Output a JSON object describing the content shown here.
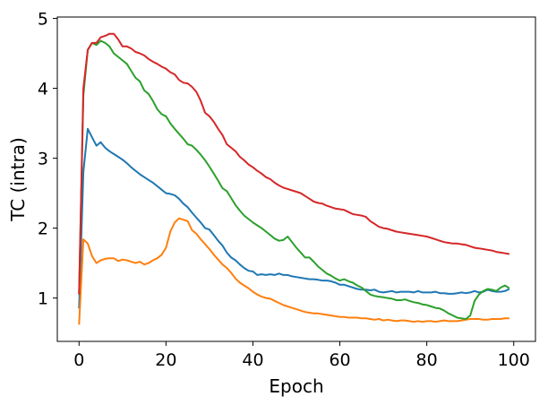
{
  "chart_data": {
    "type": "line",
    "title": "",
    "xlabel": "Epoch",
    "ylabel": "TC (intra)",
    "xlim": [
      -5,
      105
    ],
    "ylim": [
      0.38,
      5.02
    ],
    "xticks": [
      0,
      20,
      40,
      60,
      80,
      100
    ],
    "yticks": [
      1,
      2,
      3,
      4,
      5
    ],
    "grid": false,
    "legend": "none",
    "x": [
      0,
      1,
      2,
      3,
      4,
      5,
      6,
      7,
      8,
      9,
      10,
      11,
      12,
      13,
      14,
      15,
      16,
      17,
      18,
      19,
      20,
      21,
      22,
      23,
      24,
      25,
      26,
      27,
      28,
      29,
      30,
      31,
      32,
      33,
      34,
      35,
      36,
      37,
      38,
      39,
      40,
      41,
      42,
      43,
      44,
      45,
      46,
      47,
      48,
      49,
      50,
      51,
      52,
      53,
      54,
      55,
      56,
      57,
      58,
      59,
      60,
      61,
      62,
      63,
      64,
      65,
      66,
      67,
      68,
      69,
      70,
      71,
      72,
      73,
      74,
      75,
      76,
      77,
      78,
      79,
      80,
      81,
      82,
      83,
      84,
      85,
      86,
      87,
      88,
      89,
      90,
      91,
      92,
      93,
      94,
      95,
      96,
      97,
      98,
      99
    ],
    "series": [
      {
        "color": "#1f77b4",
        "values": [
          0.85,
          2.8,
          3.42,
          3.3,
          3.18,
          3.23,
          3.15,
          3.1,
          3.06,
          3.02,
          2.98,
          2.93,
          2.87,
          2.82,
          2.77,
          2.73,
          2.69,
          2.65,
          2.6,
          2.55,
          2.5,
          2.49,
          2.47,
          2.42,
          2.35,
          2.3,
          2.22,
          2.15,
          2.08,
          2.0,
          1.98,
          1.9,
          1.82,
          1.75,
          1.65,
          1.58,
          1.54,
          1.48,
          1.43,
          1.39,
          1.38,
          1.33,
          1.34,
          1.33,
          1.34,
          1.33,
          1.35,
          1.33,
          1.33,
          1.31,
          1.3,
          1.29,
          1.28,
          1.27,
          1.27,
          1.26,
          1.25,
          1.25,
          1.24,
          1.22,
          1.19,
          1.19,
          1.17,
          1.15,
          1.13,
          1.12,
          1.12,
          1.11,
          1.12,
          1.09,
          1.08,
          1.09,
          1.1,
          1.08,
          1.09,
          1.09,
          1.09,
          1.08,
          1.1,
          1.08,
          1.08,
          1.08,
          1.09,
          1.07,
          1.07,
          1.06,
          1.06,
          1.07,
          1.08,
          1.07,
          1.08,
          1.1,
          1.08,
          1.09,
          1.12,
          1.1,
          1.09,
          1.09,
          1.1,
          1.13
        ]
      },
      {
        "color": "#ff7f0e",
        "values": [
          0.62,
          1.84,
          1.78,
          1.6,
          1.5,
          1.54,
          1.56,
          1.57,
          1.57,
          1.53,
          1.55,
          1.54,
          1.52,
          1.5,
          1.52,
          1.48,
          1.5,
          1.54,
          1.57,
          1.62,
          1.72,
          1.95,
          2.08,
          2.14,
          2.12,
          2.1,
          1.97,
          1.92,
          1.84,
          1.77,
          1.7,
          1.62,
          1.55,
          1.48,
          1.43,
          1.36,
          1.28,
          1.22,
          1.18,
          1.14,
          1.09,
          1.05,
          1.02,
          1.0,
          0.99,
          0.96,
          0.93,
          0.9,
          0.88,
          0.86,
          0.84,
          0.82,
          0.8,
          0.79,
          0.78,
          0.78,
          0.77,
          0.76,
          0.75,
          0.74,
          0.73,
          0.73,
          0.72,
          0.72,
          0.72,
          0.71,
          0.71,
          0.7,
          0.69,
          0.7,
          0.68,
          0.69,
          0.68,
          0.67,
          0.68,
          0.68,
          0.67,
          0.66,
          0.67,
          0.66,
          0.67,
          0.67,
          0.66,
          0.67,
          0.68,
          0.67,
          0.67,
          0.67,
          0.68,
          0.69,
          0.7,
          0.7,
          0.7,
          0.69,
          0.69,
          0.7,
          0.7,
          0.7,
          0.71,
          0.71
        ]
      },
      {
        "color": "#2ca02c",
        "values": [
          1.05,
          3.9,
          4.55,
          4.65,
          4.62,
          4.68,
          4.65,
          4.6,
          4.5,
          4.45,
          4.4,
          4.35,
          4.25,
          4.15,
          4.1,
          3.97,
          3.92,
          3.82,
          3.7,
          3.63,
          3.6,
          3.5,
          3.42,
          3.35,
          3.28,
          3.2,
          3.18,
          3.12,
          3.05,
          2.97,
          2.88,
          2.78,
          2.68,
          2.57,
          2.53,
          2.43,
          2.33,
          2.25,
          2.18,
          2.13,
          2.08,
          2.04,
          2.0,
          1.95,
          1.9,
          1.85,
          1.82,
          1.83,
          1.88,
          1.8,
          1.72,
          1.65,
          1.58,
          1.58,
          1.52,
          1.45,
          1.4,
          1.35,
          1.32,
          1.28,
          1.25,
          1.27,
          1.24,
          1.22,
          1.18,
          1.15,
          1.1,
          1.05,
          1.03,
          1.02,
          1.01,
          1.0,
          0.99,
          0.97,
          0.97,
          0.98,
          0.96,
          0.94,
          0.93,
          0.91,
          0.9,
          0.88,
          0.86,
          0.85,
          0.82,
          0.78,
          0.75,
          0.72,
          0.71,
          0.7,
          0.75,
          0.96,
          1.05,
          1.1,
          1.13,
          1.12,
          1.1,
          1.15,
          1.18,
          1.14
        ]
      },
      {
        "color": "#d62728",
        "values": [
          1.05,
          4.0,
          4.55,
          4.65,
          4.65,
          4.73,
          4.75,
          4.78,
          4.78,
          4.7,
          4.6,
          4.6,
          4.57,
          4.52,
          4.5,
          4.47,
          4.42,
          4.38,
          4.35,
          4.31,
          4.28,
          4.23,
          4.2,
          4.12,
          4.08,
          4.07,
          4.02,
          3.95,
          3.82,
          3.65,
          3.6,
          3.52,
          3.42,
          3.33,
          3.2,
          3.15,
          3.1,
          3.02,
          2.97,
          2.91,
          2.87,
          2.82,
          2.78,
          2.73,
          2.7,
          2.65,
          2.61,
          2.58,
          2.56,
          2.54,
          2.52,
          2.5,
          2.46,
          2.42,
          2.38,
          2.36,
          2.35,
          2.32,
          2.3,
          2.28,
          2.27,
          2.26,
          2.23,
          2.2,
          2.19,
          2.18,
          2.16,
          2.1,
          2.06,
          2.02,
          2.0,
          1.99,
          1.97,
          1.95,
          1.94,
          1.93,
          1.92,
          1.91,
          1.9,
          1.89,
          1.88,
          1.86,
          1.84,
          1.82,
          1.8,
          1.79,
          1.78,
          1.78,
          1.77,
          1.76,
          1.74,
          1.72,
          1.71,
          1.7,
          1.69,
          1.68,
          1.66,
          1.65,
          1.64,
          1.63
        ]
      }
    ]
  }
}
